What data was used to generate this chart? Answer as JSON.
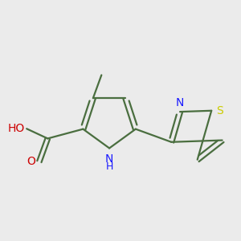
{
  "background_color": "#ebebeb",
  "bond_color": "#4a6e3f",
  "bond_width": 1.6,
  "atom_colors": {
    "N": "#1a1aff",
    "O": "#cc0000",
    "S": "#cccc00",
    "H": "#777777",
    "C": "#4a6e3f"
  },
  "font_size_atom": 10,
  "font_size_small": 9,
  "xlim": [
    -2.5,
    2.8
  ],
  "ylim": [
    -1.8,
    1.8
  ]
}
